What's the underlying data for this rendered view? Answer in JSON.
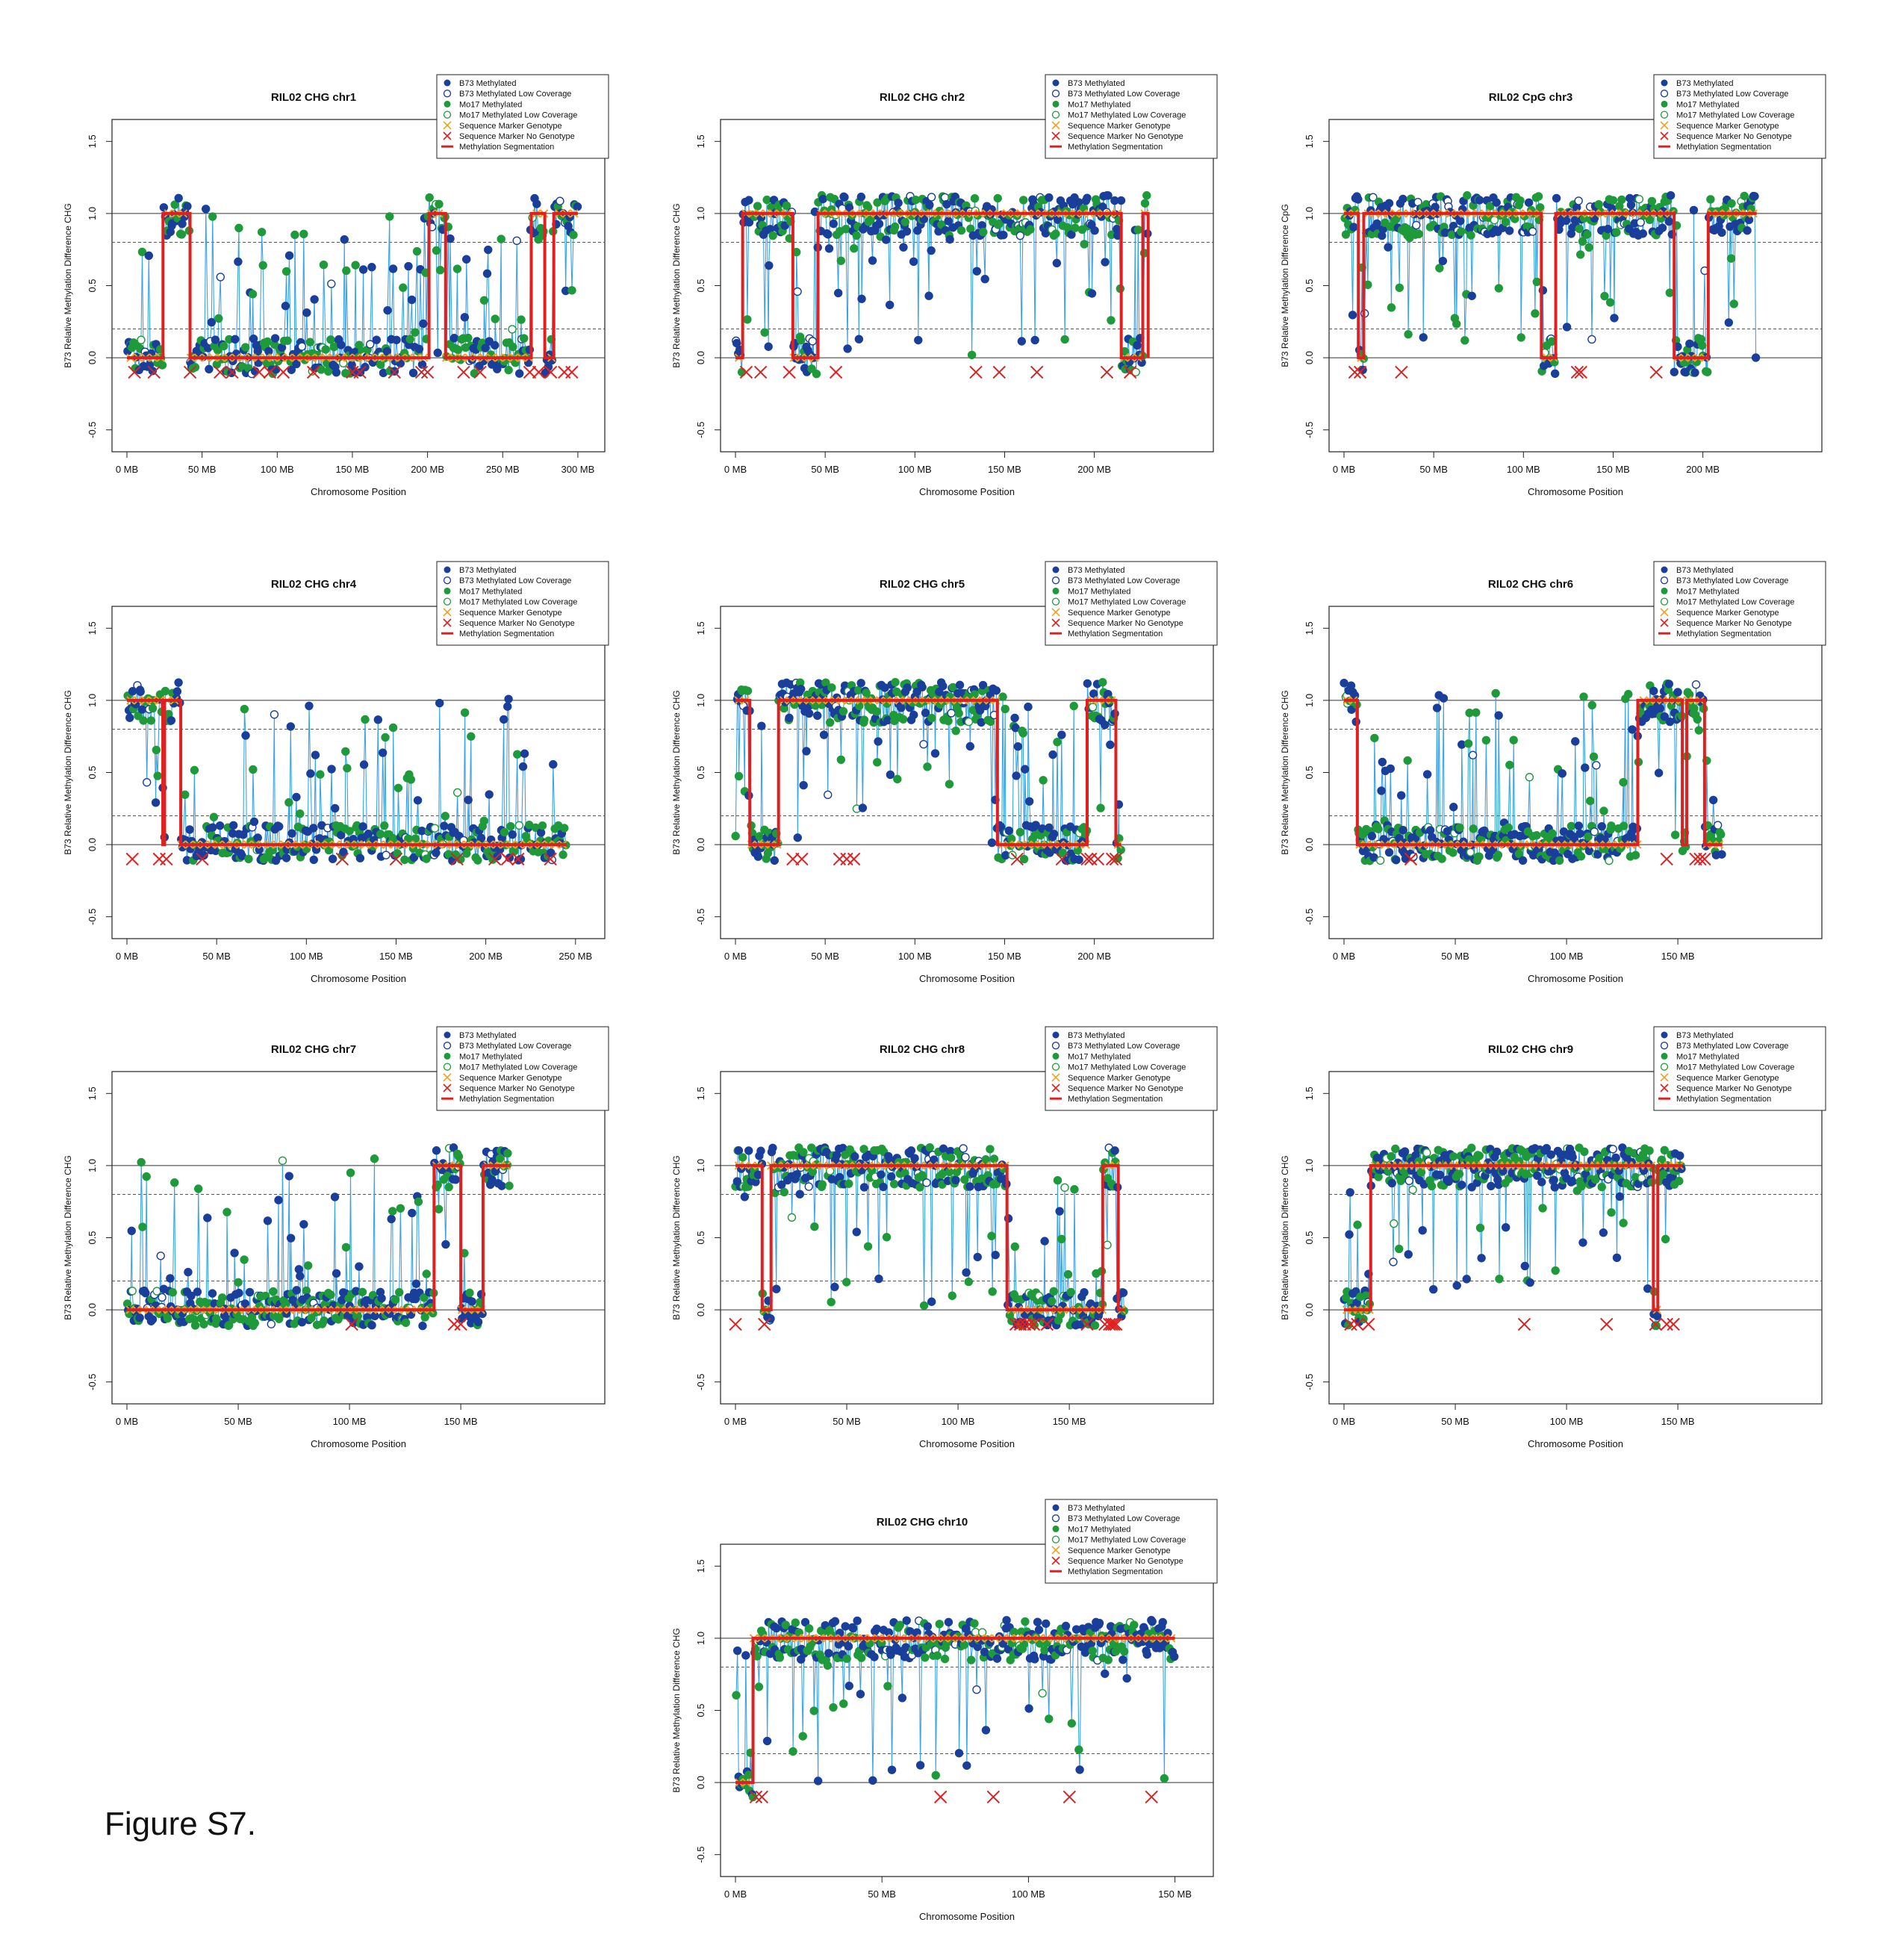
{
  "figure": {
    "caption": "Figure S7."
  },
  "colors": {
    "b73": "#1a3f9a",
    "mo17": "#1f9a3a",
    "line": "#3aa3e6",
    "segmentation": "#e02020",
    "marker_genotype": "#f0a020",
    "marker_no_genotype": "#e02020"
  },
  "legend_labels": [
    "B73 Methylated",
    "B73 Methylated Low Coverage",
    "Mo17 Methylated",
    "Mo17 Methylated Low Coverage",
    "Sequence Marker Genotype",
    "Sequence Marker No Genotype",
    "Methylation Segmentation"
  ],
  "chart_data": [
    {
      "type": "scatter",
      "title": "RIL02 CHG chr1",
      "xlabel": "Chromosome Position",
      "ylabel": "B73 Relative Methylation Difference CHG",
      "xmax": 300,
      "xticks": [
        "0 MB",
        "50 MB",
        "100 MB",
        "150 MB",
        "200 MB",
        "250 MB",
        "300 MB"
      ],
      "segments": [
        [
          0,
          0
        ],
        [
          24,
          1
        ],
        [
          42,
          0
        ],
        [
          201,
          1
        ],
        [
          212,
          0
        ],
        [
          269,
          1
        ],
        [
          278,
          0
        ],
        [
          284,
          1
        ],
        [
          300,
          1
        ]
      ],
      "marker_no_genotype_x": [
        5,
        18,
        42,
        62,
        70,
        88,
        95,
        104,
        124,
        150,
        155,
        178,
        196,
        200,
        224,
        235,
        268,
        274,
        282,
        291,
        296
      ]
    },
    {
      "type": "scatter",
      "title": "RIL02 CHG chr2",
      "xlabel": "Chromosome Position",
      "ylabel": "B73 Relative Methylation Difference CHG",
      "xmax": 230,
      "xticks": [
        "0 MB",
        "50 MB",
        "100 MB",
        "150 MB",
        "200 MB"
      ],
      "segments": [
        [
          0,
          0
        ],
        [
          4,
          1
        ],
        [
          32,
          0
        ],
        [
          46,
          1
        ],
        [
          215,
          0
        ],
        [
          227,
          1
        ],
        [
          230,
          0
        ]
      ],
      "marker_no_genotype_x": [
        6,
        14,
        30,
        56,
        134,
        147,
        168,
        207,
        220
      ]
    },
    {
      "type": "scatter",
      "title": "RIL02 CpG chr3",
      "xlabel": "Chromosome Position",
      "ylabel": "B73 Relative Methylation Difference CpG",
      "xmax": 230,
      "xticks": [
        "0 MB",
        "50 MB",
        "100 MB",
        "150 MB",
        "200 MB"
      ],
      "segments": [
        [
          0,
          1
        ],
        [
          8,
          0
        ],
        [
          11,
          1
        ],
        [
          110,
          0
        ],
        [
          118,
          1
        ],
        [
          184,
          0
        ],
        [
          203,
          1
        ],
        [
          230,
          1
        ]
      ],
      "marker_no_genotype_x": [
        6,
        9,
        32,
        130,
        132,
        174
      ]
    },
    {
      "type": "scatter",
      "title": "RIL02 CHG chr4",
      "xlabel": "Chromosome Position",
      "ylabel": "B73 Relative Methylation Difference CHG",
      "xmax": 245,
      "xticks": [
        "0 MB",
        "50 MB",
        "100 MB",
        "150 MB",
        "200 MB",
        "250 MB"
      ],
      "segments": [
        [
          0,
          1
        ],
        [
          20,
          0
        ],
        [
          21,
          1
        ],
        [
          30,
          0
        ],
        [
          245,
          0
        ]
      ],
      "marker_no_genotype_x": [
        3,
        18,
        22,
        42,
        120,
        150,
        184,
        205,
        212,
        218,
        236
      ]
    },
    {
      "type": "scatter",
      "title": "RIL02 CHG chr5",
      "xlabel": "Chromosome Position",
      "ylabel": "B73 Relative Methylation Difference CHG",
      "xmax": 215,
      "xticks": [
        "0 MB",
        "50 MB",
        "100 MB",
        "150 MB",
        "200 MB"
      ],
      "segments": [
        [
          0,
          1
        ],
        [
          8,
          0
        ],
        [
          24,
          1
        ],
        [
          146,
          0
        ],
        [
          196,
          1
        ],
        [
          212,
          0
        ],
        [
          215,
          0
        ]
      ],
      "marker_no_genotype_x": [
        32,
        37,
        58,
        62,
        66,
        157,
        182,
        196,
        198,
        202,
        210,
        212
      ]
    },
    {
      "type": "scatter",
      "title": "RIL02 CHG chr6",
      "xlabel": "Chromosome Position",
      "ylabel": "B73 Relative Methylation Difference CHG",
      "xmax": 170,
      "xticks": [
        "0 MB",
        "50 MB",
        "100 MB",
        "150 MB"
      ],
      "segments": [
        [
          0,
          1
        ],
        [
          6,
          0
        ],
        [
          132,
          1
        ],
        [
          152,
          0
        ],
        [
          154,
          1
        ],
        [
          162,
          0
        ],
        [
          168,
          0
        ]
      ],
      "marker_no_genotype_x": [
        30,
        145,
        158,
        160,
        162
      ]
    },
    {
      "type": "scatter",
      "title": "RIL02 CHG chr7",
      "xlabel": "Chromosome Position",
      "ylabel": "B73 Relative Methylation Difference CHG",
      "xmax": 172,
      "xticks": [
        "0 MB",
        "50 MB",
        "100 MB",
        "150 MB"
      ],
      "segments": [
        [
          0,
          0
        ],
        [
          138,
          1
        ],
        [
          150,
          0
        ],
        [
          160,
          1
        ],
        [
          170,
          1
        ]
      ],
      "marker_no_genotype_x": [
        101,
        147,
        150
      ]
    },
    {
      "type": "scatter",
      "title": "RIL02 CHG chr8",
      "xlabel": "Chromosome Position",
      "ylabel": "B73 Relative Methylation Difference CHG",
      "xmax": 175,
      "xticks": [
        "0 MB",
        "50 MB",
        "100 MB",
        "150 MB"
      ],
      "segments": [
        [
          0,
          1
        ],
        [
          12,
          0
        ],
        [
          16,
          1
        ],
        [
          122,
          0
        ],
        [
          165,
          1
        ],
        [
          172,
          0
        ],
        [
          175,
          0
        ]
      ],
      "marker_no_genotype_x": [
        0,
        13,
        126,
        128,
        130,
        132,
        134,
        140,
        158,
        166,
        168,
        169,
        170,
        171
      ]
    },
    {
      "type": "scatter",
      "title": "RIL02 CHG chr9",
      "xlabel": "Chromosome Position",
      "ylabel": "B73 Relative Methylation Difference CHG",
      "xmax": 152,
      "xticks": [
        "0 MB",
        "50 MB",
        "100 MB",
        "150 MB"
      ],
      "segments": [
        [
          0,
          0
        ],
        [
          12,
          1
        ],
        [
          139,
          0
        ],
        [
          141,
          1
        ],
        [
          152,
          1
        ]
      ],
      "marker_no_genotype_x": [
        3,
        6,
        11,
        81,
        118,
        140,
        145,
        148
      ]
    },
    {
      "type": "scatter",
      "title": "RIL02 CHG chr10",
      "xlabel": "Chromosome Position",
      "ylabel": "B73 Relative Methylation Difference CHG",
      "xmax": 150,
      "xticks": [
        "0 MB",
        "50 MB",
        "100 MB",
        "150 MB"
      ],
      "segments": [
        [
          0,
          0
        ],
        [
          6,
          1
        ],
        [
          150,
          1
        ]
      ],
      "marker_no_genotype_x": [
        7,
        9,
        70,
        88,
        114,
        142
      ]
    }
  ]
}
